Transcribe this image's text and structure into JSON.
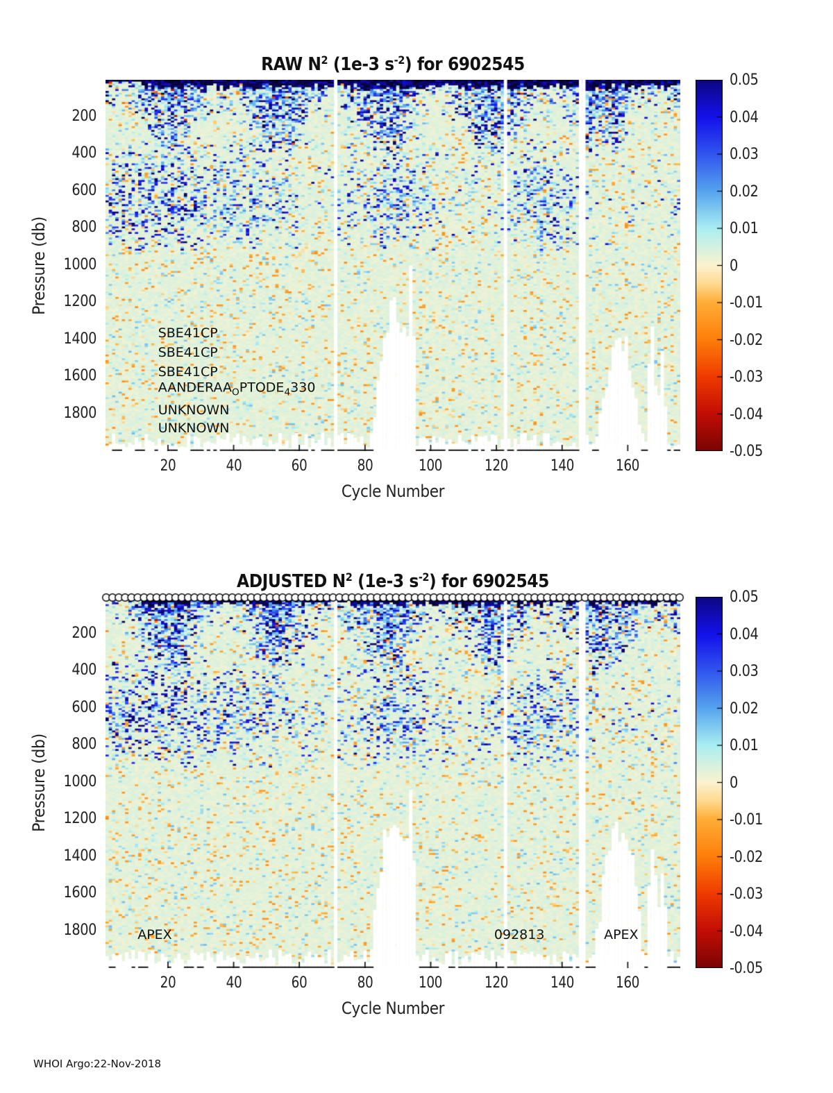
{
  "figure": {
    "background": "#ffffff",
    "footer": "WHOI Argo:22-Nov-2018"
  },
  "chart_data": [
    {
      "id": "raw",
      "type": "heatmap",
      "title": {
        "plain": "RAW N^2 (1e-3 s^-2) for 6902545",
        "p1": "RAW N",
        "sup1": "2",
        "p2": " (1e-3 s",
        "sup2": "-2",
        "p3": ") for 6902545"
      },
      "xlabel": "Cycle Number",
      "ylabel": "Pressure (db)",
      "x_range": [
        1,
        176
      ],
      "x_ticks": [
        20,
        40,
        60,
        80,
        100,
        120,
        140,
        160
      ],
      "y_range": [
        0,
        2000
      ],
      "y_ticks": [
        200,
        400,
        600,
        800,
        1000,
        1200,
        1400,
        1600,
        1800
      ],
      "legend_position": "right-colorbar",
      "grid": false,
      "colorbar": {
        "vmin": -0.05,
        "vmax": 0.05,
        "ticks": [
          0.05,
          0.04,
          0.03,
          0.02,
          0.01,
          0,
          -0.01,
          -0.02,
          -0.03,
          -0.04,
          -0.05
        ],
        "stops": [
          [
            -0.05,
            "#7a0403"
          ],
          [
            -0.04,
            "#c20d05"
          ],
          [
            -0.03,
            "#ef3b00"
          ],
          [
            -0.02,
            "#fd7e0a"
          ],
          [
            -0.01,
            "#ffad36"
          ],
          [
            -0.005,
            "#ffd98e"
          ],
          [
            0,
            "#fcf3cf"
          ],
          [
            0.01,
            "#aaeef2"
          ],
          [
            0.02,
            "#56a4ee"
          ],
          [
            0.03,
            "#3155ee"
          ],
          [
            0.04,
            "#1411ea"
          ],
          [
            0.05,
            "#0d0682"
          ],
          [
            0.065,
            "#060330"
          ]
        ]
      },
      "annotations": [
        {
          "cycle": 17,
          "pressure": 1365,
          "anchor": "left",
          "parts": [
            {
              "t": "SBE41CP"
            }
          ]
        },
        {
          "cycle": 17,
          "pressure": 1470,
          "anchor": "left",
          "parts": [
            {
              "t": "SBE41CP"
            }
          ]
        },
        {
          "cycle": 17,
          "pressure": 1575,
          "anchor": "left",
          "parts": [
            {
              "t": "SBE41CP"
            }
          ]
        },
        {
          "cycle": 17,
          "pressure": 1672,
          "anchor": "left",
          "parts": [
            {
              "t": "AANDERAA"
            },
            {
              "t": "O",
              "sub": true
            },
            {
              "t": "PTODE"
            },
            {
              "t": "4",
              "sub": true
            },
            {
              "t": "330"
            }
          ]
        },
        {
          "cycle": 17,
          "pressure": 1778,
          "anchor": "left",
          "parts": [
            {
              "t": "UNKNOWN"
            }
          ]
        },
        {
          "cycle": 17,
          "pressure": 1876,
          "anchor": "left",
          "parts": [
            {
              "t": "UNKNOWN"
            }
          ]
        }
      ],
      "markers": {
        "symbol": "none",
        "count": 0
      },
      "texture": {
        "seed": 101,
        "nx": 176,
        "ny": 200,
        "arc_period": 33,
        "arc_phase": 12,
        "arc_base": 180,
        "arc_amp": 230,
        "gap_columns": [
          71,
          123,
          146,
          147
        ],
        "bottom_gaps": [
          {
            "center": 89,
            "peak_db": 1230,
            "steep": 18
          },
          {
            "center": 94,
            "peak_db": 1060,
            "steep": 320
          },
          {
            "center": 158,
            "peak_db": 1390,
            "steep": 13
          },
          {
            "center": 168,
            "peak_db": 1330,
            "steep": 260
          },
          {
            "center": 171,
            "peak_db": 1460,
            "steep": 300
          }
        ]
      },
      "summary": "Raw buoyancy-frequency-squared section vs cycle (1-176) and pressure (0-2000 db). Mostly near-zero pale-green field (~+0.002e-3 s^-2) with orange/cyan speckle noise; strong positive (dark navy, ~0.05) cap in the upper 50-100 db; patchy blue stratification (0.01-0.05) in arcs reaching 300-800 db, densest near cycles 15-30, 50-70, 80-100, 125-145, 150-176; calm below ~900 db; white no-data gaps at cycles ~71, ~123, ~146-147 and bottom data dropouts near cycles 85-96 and 153-170."
    },
    {
      "id": "adjusted",
      "type": "heatmap",
      "title": {
        "plain": "ADJUSTED N^2 (1e-3 s^-2) for 6902545",
        "p1": "ADJUSTED N",
        "sup1": "2",
        "p2": " (1e-3 s",
        "sup2": "-2",
        "p3": ") for 6902545"
      },
      "xlabel": "Cycle Number",
      "ylabel": "Pressure (db)",
      "x_range": [
        1,
        176
      ],
      "x_ticks": [
        20,
        40,
        60,
        80,
        100,
        120,
        140,
        160
      ],
      "y_range": [
        0,
        2000
      ],
      "y_ticks": [
        200,
        400,
        600,
        800,
        1000,
        1200,
        1400,
        1600,
        1800
      ],
      "legend_position": "right-colorbar",
      "grid": false,
      "colorbar": {
        "vmin": -0.05,
        "vmax": 0.05,
        "ticks": [
          0.05,
          0.04,
          0.03,
          0.02,
          0.01,
          0,
          -0.01,
          -0.02,
          -0.03,
          -0.04,
          -0.05
        ],
        "stops": [
          [
            -0.05,
            "#7a0403"
          ],
          [
            -0.04,
            "#c20d05"
          ],
          [
            -0.03,
            "#ef3b00"
          ],
          [
            -0.02,
            "#fd7e0a"
          ],
          [
            -0.01,
            "#ffad36"
          ],
          [
            -0.005,
            "#ffd98e"
          ],
          [
            0,
            "#fcf3cf"
          ],
          [
            0.01,
            "#aaeef2"
          ],
          [
            0.02,
            "#56a4ee"
          ],
          [
            0.03,
            "#3155ee"
          ],
          [
            0.04,
            "#1411ea"
          ],
          [
            0.05,
            "#0d0682"
          ],
          [
            0.065,
            "#060330"
          ]
        ]
      },
      "annotations": [
        {
          "cycle": 16,
          "pressure": 1820,
          "anchor": "center",
          "parts": [
            {
              "t": "APEX"
            }
          ]
        },
        {
          "cycle": 127,
          "pressure": 1820,
          "anchor": "center",
          "parts": [
            {
              "t": "092813"
            }
          ]
        },
        {
          "cycle": 158,
          "pressure": 1820,
          "anchor": "center",
          "parts": [
            {
              "t": "APEX"
            }
          ]
        }
      ],
      "markers": {
        "symbol": "open-circle",
        "count": 92,
        "row": "top-edge"
      },
      "texture": {
        "seed": 202,
        "nx": 176,
        "ny": 200,
        "arc_period": 33,
        "arc_phase": 12,
        "arc_base": 180,
        "arc_amp": 230,
        "gap_columns": [
          71,
          123,
          146,
          147
        ],
        "bottom_gaps": [
          {
            "center": 89,
            "peak_db": 1170,
            "steep": 16
          },
          {
            "center": 94,
            "peak_db": 1040,
            "steep": 320
          },
          {
            "center": 158,
            "peak_db": 1260,
            "steep": 12
          },
          {
            "center": 168,
            "peak_db": 1300,
            "steep": 260
          },
          {
            "center": 171,
            "peak_db": 1430,
            "steep": 300
          }
        ]
      },
      "summary": "Adjusted buoyancy-frequency-squared section for float 6902545; same structure as the raw panel with a row of open-circle cycle markers along the top edge of the plot."
    }
  ]
}
